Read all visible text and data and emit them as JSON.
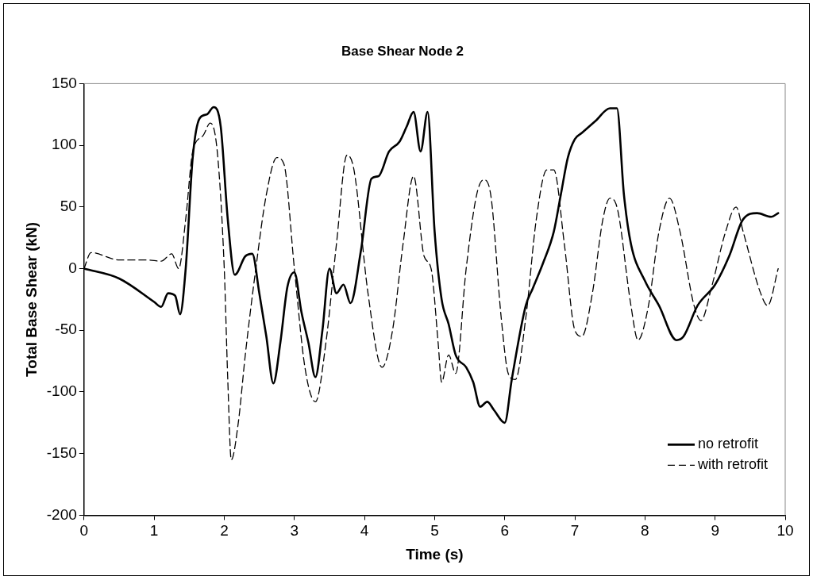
{
  "chart_data": {
    "type": "line",
    "title": "Base Shear Node 2",
    "xlabel": "Time (s)",
    "ylabel": "Total Base Shear (kN)",
    "xlim": [
      0,
      10
    ],
    "xticks": [
      0,
      1,
      2,
      3,
      4,
      5,
      6,
      7,
      8,
      9,
      10
    ],
    "ylim": [
      -200,
      150
    ],
    "yticks": [
      -200,
      -150,
      -100,
      -50,
      0,
      50,
      100,
      150
    ],
    "grid": false,
    "legend": "bottom right",
    "marker": "none",
    "series": [
      {
        "name": "no retrofit",
        "color": "#000000",
        "line_style": "solid",
        "x": [
          0,
          0.5,
          1.0,
          1.1,
          1.2,
          1.3,
          1.37,
          1.45,
          1.55,
          1.65,
          1.75,
          1.85,
          1.95,
          2.05,
          2.15,
          2.3,
          2.4,
          2.5,
          2.6,
          2.7,
          2.8,
          2.9,
          3.0,
          3.1,
          3.2,
          3.3,
          3.4,
          3.5,
          3.6,
          3.7,
          3.8,
          3.95,
          4.1,
          4.2,
          4.35,
          4.5,
          4.6,
          4.7,
          4.8,
          4.9,
          5.0,
          5.1,
          5.2,
          5.3,
          5.45,
          5.55,
          5.65,
          5.75,
          5.85,
          6.0,
          6.1,
          6.3,
          6.4,
          6.55,
          6.7,
          6.8,
          6.9,
          7.0,
          7.1,
          7.3,
          7.5,
          7.6,
          7.7,
          7.8,
          8.0,
          8.2,
          8.45,
          8.55,
          8.75,
          9.0,
          9.2,
          9.4,
          9.6,
          9.8,
          9.9
        ],
        "values": [
          0,
          -8,
          -27,
          -31,
          -20,
          -22,
          -37,
          0,
          90,
          122,
          125,
          131,
          115,
          40,
          -5,
          10,
          12,
          -20,
          -55,
          -93,
          -60,
          -15,
          -3,
          -35,
          -60,
          -88,
          -50,
          0,
          -20,
          -13,
          -28,
          15,
          73,
          75,
          95,
          103,
          115,
          127,
          95,
          127,
          30,
          -25,
          -45,
          -70,
          -80,
          -92,
          -112,
          -108,
          -115,
          -125,
          -90,
          -30,
          -16,
          5,
          30,
          60,
          90,
          105,
          110,
          120,
          130,
          130,
          60,
          20,
          -10,
          -30,
          -58,
          -55,
          -30,
          -13,
          10,
          40,
          45,
          42,
          45
        ]
      },
      {
        "name": "with retrofit",
        "color": "#000000",
        "line_style": "dashed",
        "x": [
          0,
          0.1,
          0.5,
          0.9,
          1.1,
          1.25,
          1.35,
          1.45,
          1.55,
          1.7,
          1.8,
          1.9,
          2.0,
          2.05,
          2.1,
          2.2,
          2.3,
          2.45,
          2.6,
          2.75,
          2.85,
          3.0,
          3.15,
          3.3,
          3.45,
          3.6,
          3.75,
          3.85,
          4.05,
          4.25,
          4.4,
          4.55,
          4.7,
          4.85,
          4.95,
          5.05,
          5.1,
          5.2,
          5.3,
          5.45,
          5.6,
          5.7,
          5.8,
          5.95,
          6.05,
          6.15,
          6.3,
          6.45,
          6.6,
          6.7,
          6.85,
          7.0,
          7.1,
          7.25,
          7.4,
          7.5,
          7.6,
          7.8,
          7.9,
          8.05,
          8.2,
          8.35,
          8.5,
          8.7,
          8.8,
          8.95,
          9.15,
          9.3,
          9.4,
          9.65,
          9.75,
          9.9
        ],
        "values": [
          0,
          13,
          7,
          7,
          6,
          12,
          0,
          40,
          95,
          108,
          118,
          95,
          0,
          -90,
          -155,
          -125,
          -70,
          0,
          60,
          90,
          85,
          0,
          -80,
          -108,
          -60,
          20,
          92,
          80,
          -20,
          -80,
          -50,
          20,
          75,
          10,
          0,
          -60,
          -92,
          -70,
          -85,
          0,
          60,
          72,
          60,
          -40,
          -85,
          -90,
          -40,
          40,
          80,
          80,
          20,
          -50,
          -55,
          -20,
          40,
          57,
          50,
          -30,
          -58,
          -30,
          30,
          57,
          30,
          -30,
          -42,
          -15,
          30,
          50,
          30,
          -20,
          -30,
          0
        ]
      }
    ]
  }
}
